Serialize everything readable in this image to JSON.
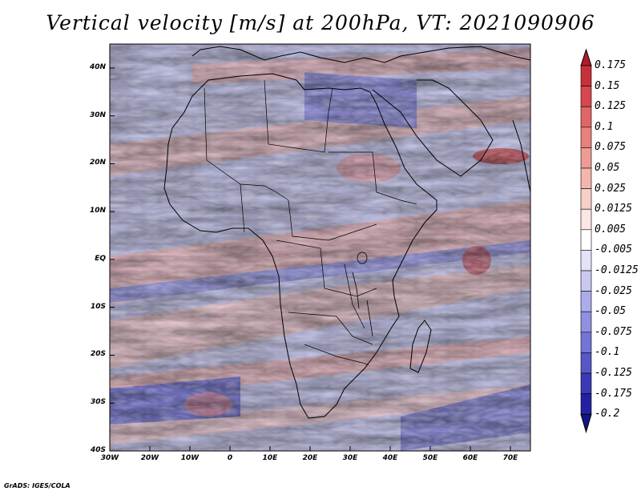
{
  "title": "Vertical velocity [m/s] at 200hPa, VT: 2021090906",
  "footer": "GrADS: IGES/COLA",
  "y_axis": {
    "labels": [
      "40N",
      "30N",
      "20N",
      "10N",
      "EQ",
      "10S",
      "20S",
      "30S",
      "40S"
    ],
    "values": [
      40,
      30,
      20,
      10,
      0,
      -10,
      -20,
      -30,
      -40
    ]
  },
  "x_axis": {
    "labels": [
      "30W",
      "20W",
      "10W",
      "0",
      "10E",
      "20E",
      "30E",
      "40E",
      "50E",
      "60E",
      "70E"
    ],
    "values": [
      -30,
      -20,
      -10,
      0,
      10,
      20,
      30,
      40,
      50,
      60,
      70
    ]
  },
  "colorbar": {
    "labels": [
      "0.175",
      "0.15",
      "0.125",
      "0.1",
      "0.075",
      "0.05",
      "0.025",
      "0.0125",
      "0.005",
      "-0.005",
      "-0.0125",
      "-0.025",
      "-0.05",
      "-0.075",
      "-0.1",
      "-0.125",
      "-0.175",
      "-0.2"
    ],
    "colors": [
      "#b2182b",
      "#c7303a",
      "#d6484d",
      "#e06565",
      "#e8807c",
      "#ee9b93",
      "#f3b6ab",
      "#f7cfc7",
      "#fae6e2",
      "#ffffff",
      "#e3e3f7",
      "#c8c8f0",
      "#acacea",
      "#9090e0",
      "#7474d6",
      "#5757c8",
      "#3a3ab6",
      "#2222a0",
      "#14148a"
    ]
  },
  "domain": {
    "lon": [
      -30,
      75
    ],
    "lat": [
      -40,
      45
    ]
  }
}
